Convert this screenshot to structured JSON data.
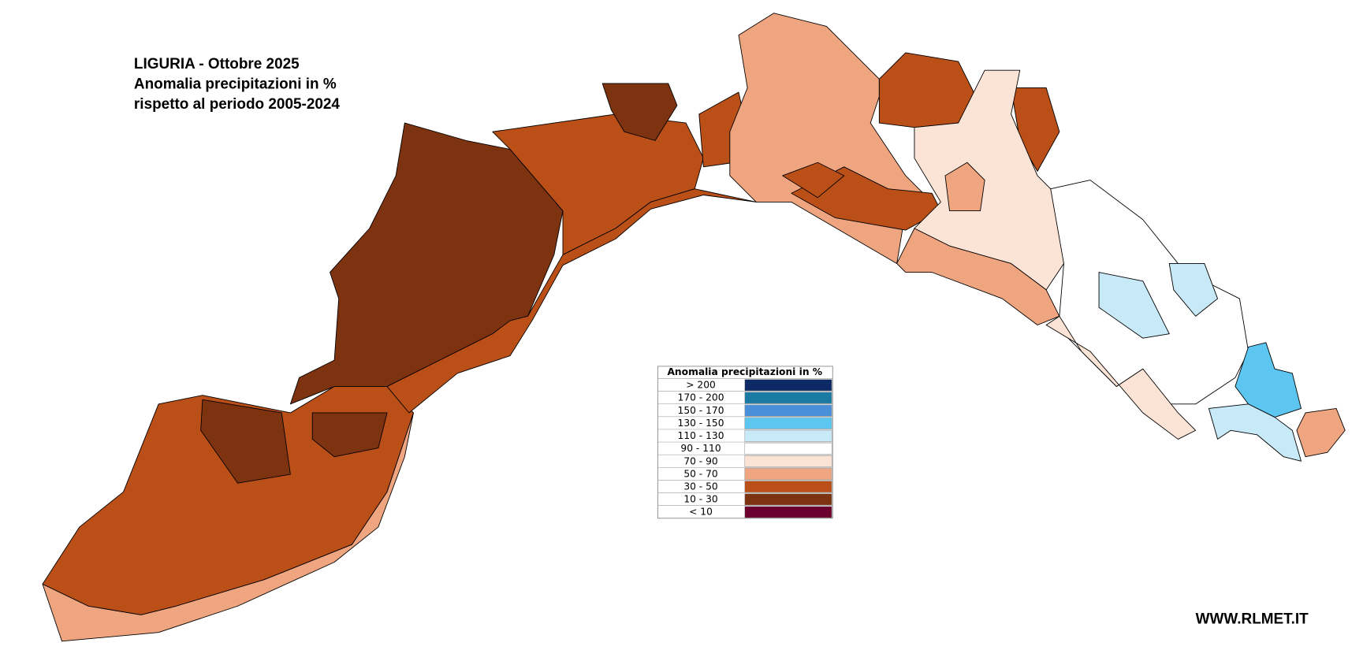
{
  "title": [
    "LIGURIA - Ottobre 2025",
    "Anomalia precipitazioni in %",
    "rispetto al periodo 2005-2024"
  ],
  "legend": {
    "title": "Anomalia precipitazioni in %",
    "entries": [
      {
        "label": "> 200",
        "color": "#0d2a66"
      },
      {
        "label": "170 - 200",
        "color": "#1a7aa3"
      },
      {
        "label": "150 - 170",
        "color": "#4a90d9"
      },
      {
        "label": "130 - 150",
        "color": "#5cc6f0"
      },
      {
        "label": "110 - 130",
        "color": "#c8eaf8"
      },
      {
        "label": "90 - 110",
        "color": "#ffffff"
      },
      {
        "label": "70 - 90",
        "color": "#fbe3d6"
      },
      {
        "label": "50 - 70",
        "color": "#efa680"
      },
      {
        "label": "30 - 50",
        "color": "#bb4f18"
      },
      {
        "label": "10 - 30",
        "color": "#7d3310"
      },
      {
        "label": "< 10",
        "color": "#6b0030"
      }
    ]
  },
  "footer": "WWW.RLMET.IT"
}
